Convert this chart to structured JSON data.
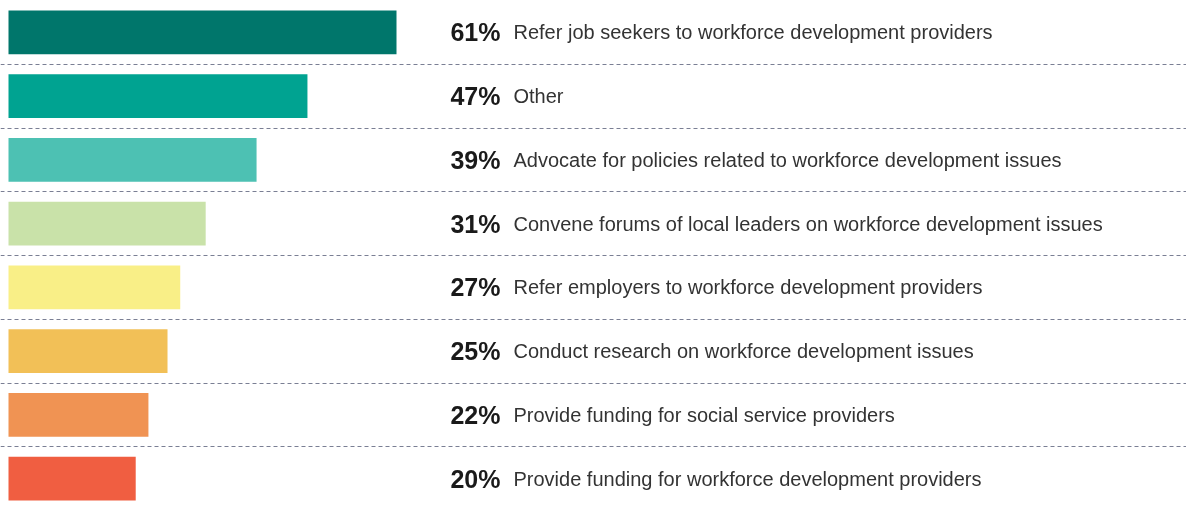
{
  "chart_data": {
    "type": "bar",
    "orientation": "horizontal",
    "categories": [
      "Refer job seekers to workforce development providers",
      "Other",
      "Advocate for policies related to workforce development issues",
      "Convene forums of local leaders on workforce development issues",
      "Refer employers to workforce development providers",
      "Conduct research on workforce development issues",
      "Provide funding for social service providers",
      "Provide funding for workforce development providers"
    ],
    "values": [
      61,
      47,
      39,
      31,
      27,
      25,
      22,
      20
    ],
    "value_labels": [
      "61%",
      "47%",
      "39%",
      "31%",
      "27%",
      "25%",
      "22%",
      "20%"
    ],
    "colors": [
      "#00766b",
      "#00a391",
      "#4dc1b3",
      "#c9e2a9",
      "#f9ef87",
      "#f2c057",
      "#f09353",
      "#f05e41"
    ],
    "grid": "y"
  }
}
